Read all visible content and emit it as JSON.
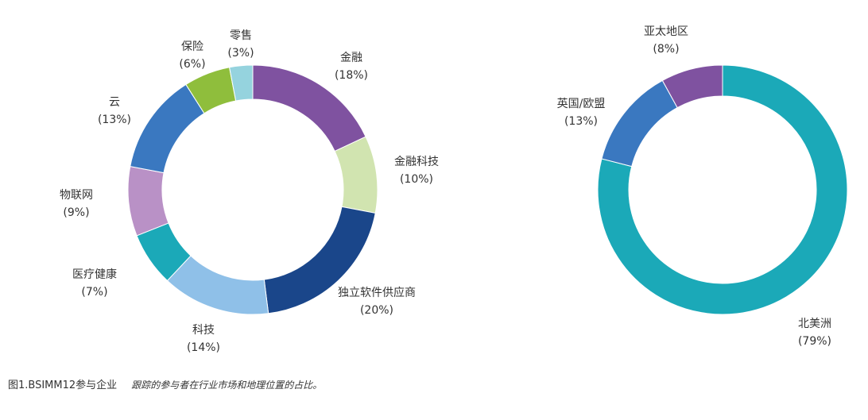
{
  "chart_data": [
    {
      "type": "donut",
      "title": "",
      "categories": [
        "金融",
        "金融科技",
        "独立软件供应商",
        "科技",
        "医疗健康",
        "物联网",
        "云",
        "保险",
        "零售"
      ],
      "values": [
        18,
        10,
        20,
        14,
        7,
        9,
        13,
        6,
        3
      ],
      "percent_labels": [
        "(18%)",
        "(10%)",
        "(20%)",
        "(14%)",
        "(7%)",
        "(9%)",
        "(13%)",
        "(6%)",
        "(3%)"
      ],
      "colors": [
        "#7f52a0",
        "#d1e4b0",
        "#1a468a",
        "#8fc0e8",
        "#1ba9b8",
        "#b991c6",
        "#3a78c0",
        "#8fbe3c",
        "#95d3de"
      ],
      "start": "top, clockwise"
    },
    {
      "type": "donut",
      "title": "",
      "categories": [
        "北美洲",
        "英国/欧盟",
        "亚太地区"
      ],
      "values": [
        79,
        13,
        8
      ],
      "percent_labels": [
        "(79%)",
        "(13%)",
        "(8%)"
      ],
      "colors": [
        "#1ba9b8",
        "#3a78c0",
        "#7f52a0"
      ],
      "start": "top, clockwise"
    }
  ],
  "caption": {
    "title": "图1.BSIMM12参与企业",
    "description": "跟踪的参与者在行业市场和地理位置的占比。"
  }
}
